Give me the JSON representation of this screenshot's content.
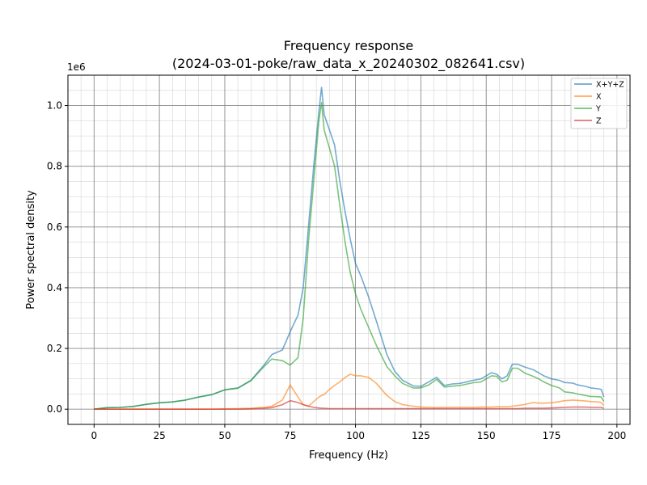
{
  "chart_data": {
    "type": "line",
    "title": "Frequency response",
    "subtitle": "(2024-03-01-poke/raw_data_x_20240302_082641.csv)",
    "xlabel": "Frequency (Hz)",
    "ylabel": "Power spectral density",
    "y_offset_label": "1e6",
    "xlim": [
      -10,
      205
    ],
    "ylim": [
      -0.05,
      1.1
    ],
    "x_ticks": [
      0,
      25,
      50,
      75,
      100,
      125,
      150,
      175,
      200
    ],
    "x_tick_labels": [
      "0",
      "25",
      "50",
      "75",
      "100",
      "125",
      "150",
      "175",
      "200"
    ],
    "y_ticks": [
      0.0,
      0.2,
      0.4,
      0.6,
      0.8,
      1.0
    ],
    "y_tick_labels": [
      "0.0",
      "0.2",
      "0.4",
      "0.6",
      "0.8",
      "1.0"
    ],
    "x_minor_step": 5,
    "y_minor_step": 0.05,
    "grid": true,
    "legend_position": "top-right",
    "x": [
      0,
      5,
      10,
      15,
      20,
      25,
      30,
      35,
      40,
      45,
      50,
      55,
      60,
      65,
      68,
      72,
      75,
      78,
      80,
      82,
      84,
      86,
      87,
      88,
      90,
      92,
      94,
      96,
      98,
      100,
      102,
      105,
      108,
      112,
      115,
      118,
      122,
      125,
      128,
      131,
      134,
      137,
      140,
      145,
      148,
      150,
      152,
      154,
      156,
      158,
      160,
      162,
      165,
      168,
      170,
      172,
      175,
      178,
      180,
      183,
      185,
      188,
      190,
      193,
      194,
      195
    ],
    "series": [
      {
        "name": "X+Y+Z",
        "color": "#1f77b4",
        "values": [
          0.0,
          0.005,
          0.006,
          0.009,
          0.016,
          0.021,
          0.024,
          0.03,
          0.04,
          0.048,
          0.064,
          0.07,
          0.095,
          0.145,
          0.18,
          0.195,
          0.255,
          0.31,
          0.4,
          0.6,
          0.8,
          0.98,
          1.06,
          0.97,
          0.92,
          0.87,
          0.75,
          0.65,
          0.56,
          0.48,
          0.44,
          0.37,
          0.29,
          0.18,
          0.125,
          0.095,
          0.077,
          0.075,
          0.09,
          0.105,
          0.078,
          0.083,
          0.085,
          0.095,
          0.1,
          0.11,
          0.12,
          0.115,
          0.1,
          0.11,
          0.148,
          0.148,
          0.138,
          0.13,
          0.12,
          0.11,
          0.1,
          0.095,
          0.088,
          0.086,
          0.08,
          0.075,
          0.07,
          0.067,
          0.065,
          0.04
        ]
      },
      {
        "name": "X",
        "color": "#ff7f0e",
        "values": [
          0.0,
          0.0,
          0.0,
          0.0,
          0.0,
          0.0,
          0.0,
          0.0,
          0.0,
          0.0,
          0.001,
          0.002,
          0.003,
          0.006,
          0.01,
          0.03,
          0.08,
          0.04,
          0.015,
          0.01,
          0.025,
          0.04,
          0.045,
          0.048,
          0.065,
          0.078,
          0.09,
          0.105,
          0.115,
          0.11,
          0.11,
          0.105,
          0.085,
          0.045,
          0.025,
          0.015,
          0.01,
          0.007,
          0.006,
          0.005,
          0.006,
          0.006,
          0.006,
          0.006,
          0.007,
          0.007,
          0.007,
          0.008,
          0.008,
          0.008,
          0.01,
          0.012,
          0.016,
          0.022,
          0.02,
          0.02,
          0.021,
          0.025,
          0.028,
          0.03,
          0.029,
          0.027,
          0.025,
          0.024,
          0.022,
          0.012
        ]
      },
      {
        "name": "Y",
        "color": "#2ca02c",
        "values": [
          0.0,
          0.005,
          0.006,
          0.009,
          0.016,
          0.021,
          0.024,
          0.03,
          0.04,
          0.048,
          0.064,
          0.069,
          0.094,
          0.14,
          0.165,
          0.16,
          0.145,
          0.17,
          0.3,
          0.55,
          0.75,
          0.95,
          1.01,
          0.92,
          0.86,
          0.8,
          0.67,
          0.55,
          0.45,
          0.38,
          0.33,
          0.27,
          0.21,
          0.14,
          0.11,
          0.085,
          0.07,
          0.07,
          0.08,
          0.098,
          0.073,
          0.076,
          0.078,
          0.087,
          0.09,
          0.1,
          0.11,
          0.108,
          0.09,
          0.095,
          0.135,
          0.135,
          0.118,
          0.108,
          0.1,
          0.09,
          0.078,
          0.07,
          0.057,
          0.054,
          0.05,
          0.045,
          0.042,
          0.041,
          0.04,
          0.025
        ]
      },
      {
        "name": "Z",
        "color": "#d62728",
        "values": [
          0.0,
          0.0,
          0.0,
          0.0,
          0.0,
          0.0,
          0.0,
          0.0,
          0.0,
          0.0,
          0.0,
          0.0,
          0.001,
          0.003,
          0.005,
          0.015,
          0.028,
          0.022,
          0.015,
          0.01,
          0.006,
          0.004,
          0.003,
          0.003,
          0.002,
          0.002,
          0.002,
          0.002,
          0.002,
          0.002,
          0.002,
          0.002,
          0.002,
          0.002,
          0.002,
          0.002,
          0.002,
          0.002,
          0.002,
          0.002,
          0.002,
          0.002,
          0.002,
          0.002,
          0.002,
          0.002,
          0.002,
          0.002,
          0.002,
          0.002,
          0.002,
          0.002,
          0.003,
          0.003,
          0.003,
          0.003,
          0.004,
          0.005,
          0.006,
          0.007,
          0.007,
          0.007,
          0.006,
          0.006,
          0.006,
          0.003
        ]
      }
    ]
  }
}
